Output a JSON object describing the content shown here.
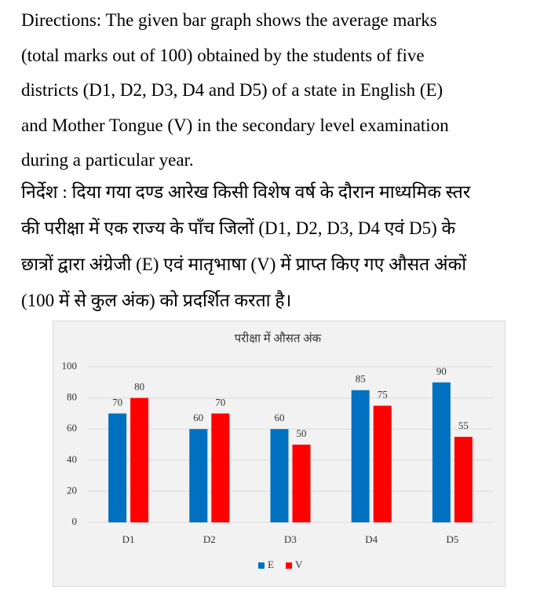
{
  "directions": {
    "english_lines": [
      "Directions: The given bar graph shows the average marks",
      "(total marks out of 100) obtained by the students of five",
      "districts (D1, D2, D3, D4 and D5) of a state in English (E)",
      "and Mother Tongue (V) in the secondary level examination",
      "during a particular year."
    ],
    "hindi_lines": [
      "निर्देश : दिया गया दण्ड आरेख किसी विशेष वर्ष के दौरान माध्यमिक स्तर",
      "की परीक्षा में एक राज्य के पाँच जिलों (D1, D2, D3, D4 एवं D5) के",
      "छात्रों द्वारा अंग्रेजी (E) एवं मातृभाषा (V) में प्राप्त किए गए औसत अंकों",
      "(100 में से कुल अंक) को प्रदर्शित करता है।"
    ]
  },
  "chart_data": {
    "type": "bar",
    "title": "परीक्षा में औसत अंक",
    "categories": [
      "D1",
      "D2",
      "D3",
      "D4",
      "D5"
    ],
    "series": [
      {
        "name": "E",
        "color": "#0070c0",
        "values": [
          70,
          60,
          60,
          85,
          90
        ]
      },
      {
        "name": "V",
        "color": "#ff0000",
        "values": [
          80,
          70,
          50,
          75,
          55
        ]
      }
    ],
    "ylim": [
      0,
      100
    ],
    "yticks": [
      0,
      20,
      40,
      60,
      80,
      100
    ],
    "grid": true,
    "legend": "bottom"
  }
}
